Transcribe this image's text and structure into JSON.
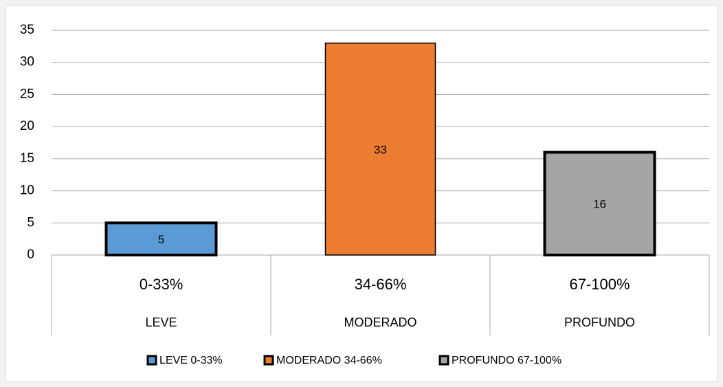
{
  "chart_data": {
    "type": "bar",
    "categories": [
      "0-33%",
      "34-66%",
      "67-100%"
    ],
    "groups": [
      "LEVE",
      "MODERADO",
      "PROFUNDO"
    ],
    "series": [
      {
        "name": "LEVE 0-33%",
        "color": "#5b9bd5",
        "edge_width": 4,
        "values": [
          5,
          null,
          null
        ]
      },
      {
        "name": "MODERADO 34-66%",
        "color": "#ed7d31",
        "edge_width": 1.5,
        "values": [
          null,
          33,
          null
        ]
      },
      {
        "name": "PROFUNDO 67-100%",
        "color": "#a5a5a5",
        "edge_width": 4,
        "values": [
          null,
          null,
          16
        ]
      }
    ],
    "ylim": [
      0,
      35
    ],
    "yticks": [
      0,
      5,
      10,
      15,
      20,
      25,
      30,
      35
    ],
    "grid": true,
    "legend": "bottom"
  }
}
